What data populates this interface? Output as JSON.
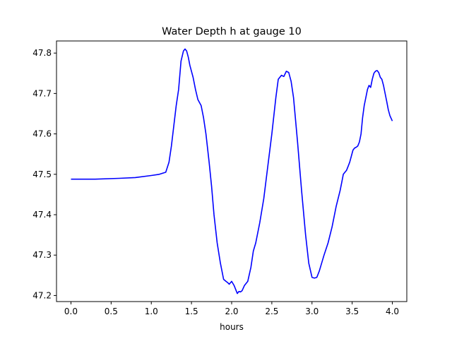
{
  "chart_data": {
    "type": "line",
    "title": "Water Depth h at gauge 10",
    "xlabel": "hours",
    "ylabel": "",
    "xlim": [
      -0.18,
      4.18
    ],
    "ylim": [
      47.185,
      47.83
    ],
    "xticks": [
      0.0,
      0.5,
      1.0,
      1.5,
      2.0,
      2.5,
      3.0,
      3.5,
      4.0
    ],
    "xtick_labels": [
      "0.0",
      "0.5",
      "1.0",
      "1.5",
      "2.0",
      "2.5",
      "3.0",
      "3.5",
      "4.0"
    ],
    "yticks": [
      47.2,
      47.3,
      47.4,
      47.5,
      47.6,
      47.7,
      47.8
    ],
    "ytick_labels": [
      "47.2",
      "47.3",
      "47.4",
      "47.5",
      "47.6",
      "47.7",
      "47.8"
    ],
    "grid": false,
    "legend": "none",
    "series": [
      {
        "color": "#0000ff",
        "x": [
          0.0,
          0.3,
          0.6,
          0.8,
          1.0,
          1.1,
          1.18,
          1.22,
          1.25,
          1.28,
          1.31,
          1.34,
          1.37,
          1.4,
          1.42,
          1.44,
          1.46,
          1.48,
          1.5,
          1.52,
          1.55,
          1.58,
          1.62,
          1.65,
          1.68,
          1.72,
          1.75,
          1.78,
          1.82,
          1.86,
          1.9,
          1.93,
          1.95,
          1.97,
          2.0,
          2.03,
          2.05,
          2.07,
          2.09,
          2.11,
          2.13,
          2.16,
          2.2,
          2.24,
          2.27,
          2.3,
          2.35,
          2.4,
          2.45,
          2.5,
          2.55,
          2.58,
          2.62,
          2.65,
          2.68,
          2.71,
          2.74,
          2.77,
          2.82,
          2.87,
          2.92,
          2.96,
          3.0,
          3.03,
          3.06,
          3.09,
          3.12,
          3.15,
          3.2,
          3.25,
          3.3,
          3.35,
          3.37,
          3.39,
          3.41,
          3.43,
          3.45,
          3.47,
          3.49,
          3.51,
          3.53,
          3.55,
          3.57,
          3.59,
          3.61,
          3.63,
          3.65,
          3.67,
          3.69,
          3.71,
          3.73,
          3.75,
          3.77,
          3.79,
          3.81,
          3.83,
          3.85,
          3.87,
          3.89,
          3.91,
          3.93,
          3.95,
          3.97,
          4.0
        ],
        "y": [
          47.488,
          47.488,
          47.49,
          47.492,
          47.497,
          47.5,
          47.505,
          47.53,
          47.57,
          47.62,
          47.67,
          47.71,
          47.78,
          47.805,
          47.81,
          47.805,
          47.79,
          47.77,
          47.755,
          47.74,
          47.71,
          47.685,
          47.67,
          47.64,
          47.6,
          47.53,
          47.47,
          47.4,
          47.33,
          47.28,
          47.24,
          47.235,
          47.232,
          47.228,
          47.235,
          47.225,
          47.215,
          47.205,
          47.21,
          47.209,
          47.212,
          47.225,
          47.235,
          47.27,
          47.31,
          47.33,
          47.38,
          47.44,
          47.52,
          47.6,
          47.69,
          47.735,
          47.745,
          47.742,
          47.755,
          47.752,
          47.73,
          47.69,
          47.58,
          47.46,
          47.35,
          47.28,
          47.245,
          47.243,
          47.245,
          47.26,
          47.28,
          47.3,
          47.33,
          47.37,
          47.42,
          47.46,
          47.48,
          47.5,
          47.505,
          47.51,
          47.52,
          47.53,
          47.545,
          47.56,
          47.565,
          47.567,
          47.57,
          47.58,
          47.6,
          47.64,
          47.67,
          47.69,
          47.71,
          47.72,
          47.715,
          47.735,
          47.75,
          47.755,
          47.757,
          47.752,
          47.74,
          47.735,
          47.72,
          47.7,
          47.68,
          47.66,
          47.645,
          47.632
        ]
      }
    ]
  }
}
